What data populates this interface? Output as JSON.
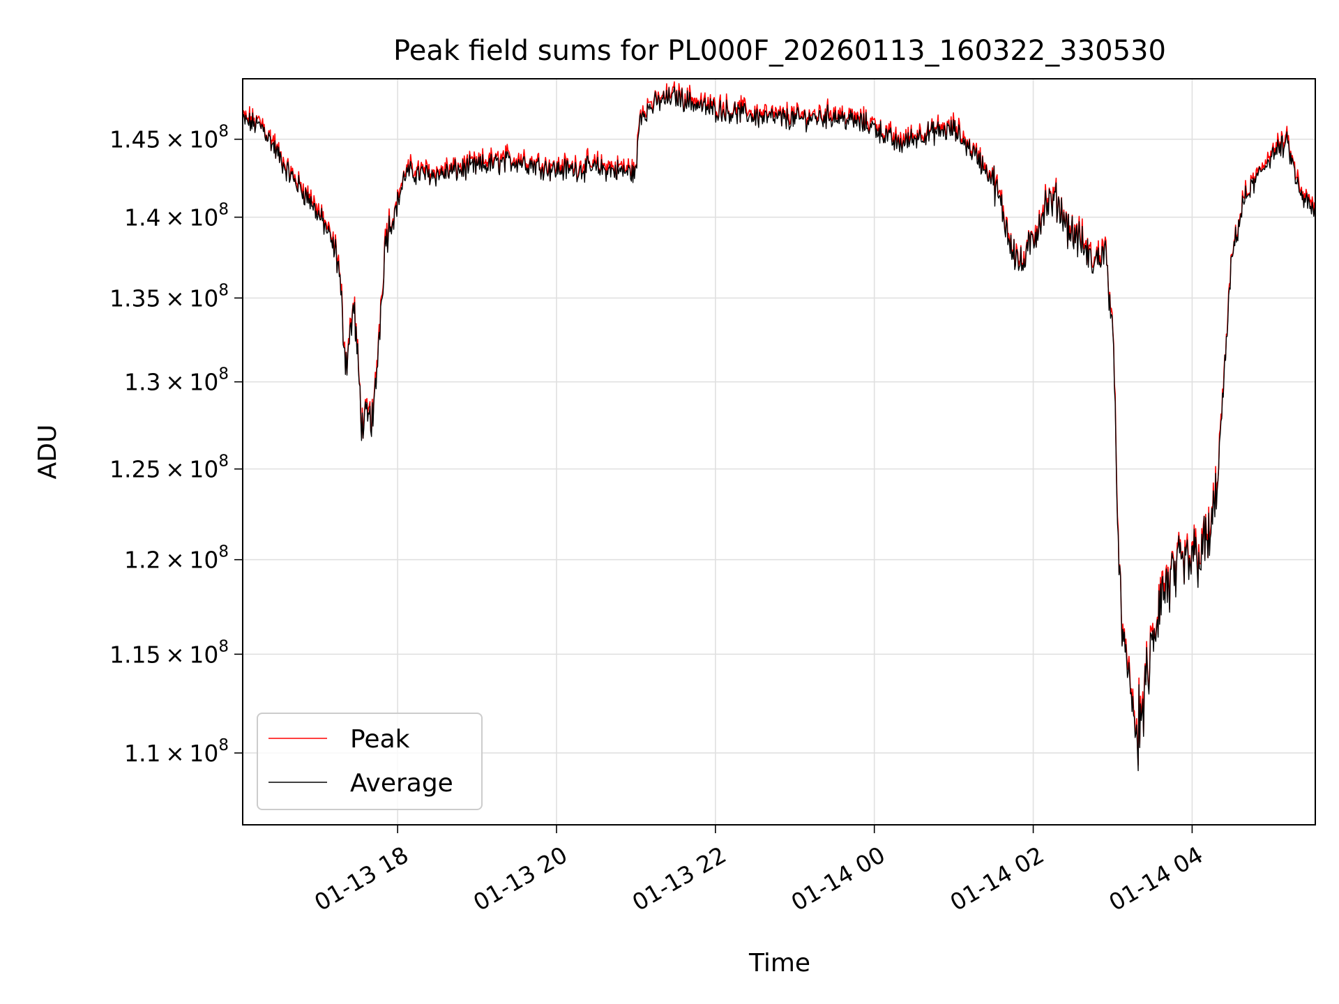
{
  "chart_data": {
    "type": "line",
    "title": "Peak field sums for PL000F_20260113_160322_330530",
    "xlabel": "Time",
    "ylabel": "ADU",
    "yscale": "log",
    "ylim": [
      106500000,
      149000000
    ],
    "xlim_hours": [
      16.05,
      29.55
    ],
    "x_unit": "hours since 2026-01-13 00:00",
    "grid": true,
    "legend_position": "lower-left",
    "x_ticks": [
      {
        "value": 18,
        "label": "01-13 18"
      },
      {
        "value": 20,
        "label": "01-13 20"
      },
      {
        "value": 22,
        "label": "01-13 22"
      },
      {
        "value": 24,
        "label": "01-14 00"
      },
      {
        "value": 26,
        "label": "01-14 02"
      },
      {
        "value": 28,
        "label": "01-14 04"
      }
    ],
    "y_ticks": [
      {
        "value": 110000000,
        "mantissa": "1.1",
        "times": "×",
        "base": "10",
        "exponent": "8"
      },
      {
        "value": 115000000,
        "mantissa": "1.15",
        "times": "×",
        "base": "10",
        "exponent": "8"
      },
      {
        "value": 120000000,
        "mantissa": "1.2",
        "times": "×",
        "base": "10",
        "exponent": "8"
      },
      {
        "value": 125000000,
        "mantissa": "1.25",
        "times": "×",
        "base": "10",
        "exponent": "8"
      },
      {
        "value": 130000000,
        "mantissa": "1.3",
        "times": "×",
        "base": "10",
        "exponent": "8"
      },
      {
        "value": 135000000,
        "mantissa": "1.35",
        "times": "×",
        "base": "10",
        "exponent": "8"
      },
      {
        "value": 140000000,
        "mantissa": "1.4",
        "times": "×",
        "base": "10",
        "exponent": "8"
      },
      {
        "value": 145000000,
        "mantissa": "1.45",
        "times": "×",
        "base": "10",
        "exponent": "8"
      }
    ],
    "series": [
      {
        "name": "Peak",
        "color": "#ff0000",
        "offset_adu": 400000
      },
      {
        "name": "Average",
        "color": "#000000",
        "offset_adu": 0
      }
    ],
    "envelope": {
      "hours": [
        16.05,
        16.3,
        16.6,
        16.9,
        17.1,
        17.25,
        17.35,
        17.45,
        17.55,
        17.7,
        17.85,
        17.95,
        18.1,
        18.5,
        19.0,
        19.5,
        20.0,
        20.5,
        21.0,
        21.05,
        21.3,
        21.5,
        21.7,
        21.9,
        22.2,
        22.6,
        23.0,
        23.5,
        24.0,
        24.3,
        24.6,
        25.0,
        25.3,
        25.5,
        25.7,
        25.85,
        26.0,
        26.15,
        26.3,
        26.45,
        26.6,
        26.75,
        26.9,
        27.0,
        27.05,
        27.12,
        27.2,
        27.3,
        27.45,
        27.6,
        27.8,
        28.0,
        28.2,
        28.3,
        28.4,
        28.5,
        28.65,
        28.8,
        29.0,
        29.2,
        29.35,
        29.55
      ],
      "adu": [
        146200000,
        145800000,
        143000000,
        141000000,
        139300000,
        137300000,
        131000000,
        134500000,
        127500000,
        128000000,
        138800000,
        140000000,
        142800000,
        142700000,
        143200000,
        143600000,
        143000000,
        143100000,
        142800000,
        146600000,
        147500000,
        147800000,
        147400000,
        147000000,
        146800000,
        146400000,
        146300000,
        146500000,
        145800000,
        144600000,
        145300000,
        145600000,
        143800000,
        142300000,
        138700000,
        136800000,
        138600000,
        140700000,
        141000000,
        139200000,
        138400000,
        137000000,
        138000000,
        133500000,
        124000000,
        115500000,
        114200000,
        110500000,
        114000000,
        118000000,
        119200000,
        120000000,
        120800000,
        123000000,
        130000000,
        137500000,
        141000000,
        142300000,
        144000000,
        144700000,
        141500000,
        140200000
      ]
    },
    "noise_amplitude_adu": 600000
  }
}
